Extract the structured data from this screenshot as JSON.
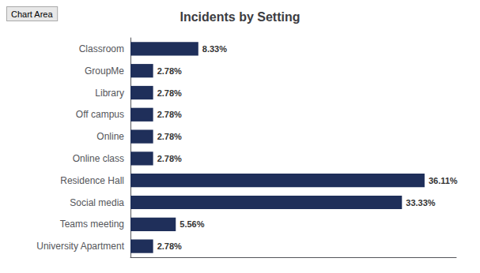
{
  "chart_data": {
    "type": "bar",
    "title": "Incidents by Setting",
    "orientation": "horizontal",
    "categories": [
      "University Apartment",
      "Teams meeting",
      "Social media",
      "Residence Hall",
      "Online class",
      "Online",
      "Off campus",
      "Library",
      "GroupMe",
      "Classroom"
    ],
    "values": [
      2.78,
      5.56,
      33.33,
      36.11,
      2.78,
      2.78,
      2.78,
      2.78,
      2.78,
      8.33
    ],
    "value_labels": [
      "2.78%",
      "5.56%",
      "33.33%",
      "36.11%",
      "2.78%",
      "2.78%",
      "2.78%",
      "2.78%",
      "2.78%",
      "8.33%"
    ],
    "data_labels": true,
    "color": "#1F2F5A",
    "xlim": [
      0,
      40
    ],
    "tick_labels": "y",
    "grid": false,
    "annotations": [
      "Chart Area"
    ]
  }
}
